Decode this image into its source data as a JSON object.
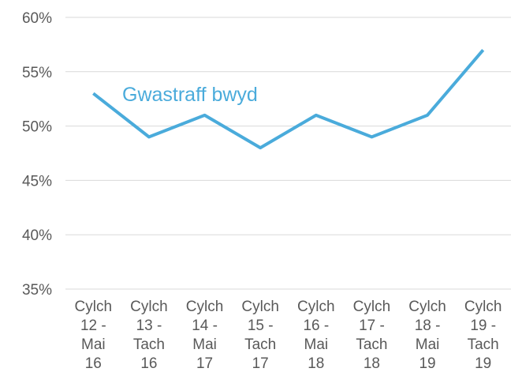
{
  "chart_data": {
    "type": "line",
    "categories": [
      "Cylch\n12 -\nMai\n16",
      "Cylch\n13 -\nTach\n16",
      "Cylch\n14 -\nMai\n17",
      "Cylch\n15 -\nTach\n17",
      "Cylch\n16 -\nMai\n18",
      "Cylch\n17 -\nTach\n18",
      "Cylch\n18 -\nMai\n19",
      "Cylch\n19 -\nTach\n19"
    ],
    "series": [
      {
        "name": "Gwastraff bwyd",
        "color": "#4aabdb",
        "values": [
          53,
          49,
          51,
          48,
          51,
          49,
          51,
          57
        ]
      }
    ],
    "ylim": [
      35,
      60
    ],
    "yticks": [
      {
        "value": 35,
        "label": "35%"
      },
      {
        "value": 40,
        "label": "40%"
      },
      {
        "value": 45,
        "label": "45%"
      },
      {
        "value": 50,
        "label": "50%"
      },
      {
        "value": 55,
        "label": "55%"
      },
      {
        "value": 60,
        "label": "60%"
      }
    ],
    "grid": true
  }
}
